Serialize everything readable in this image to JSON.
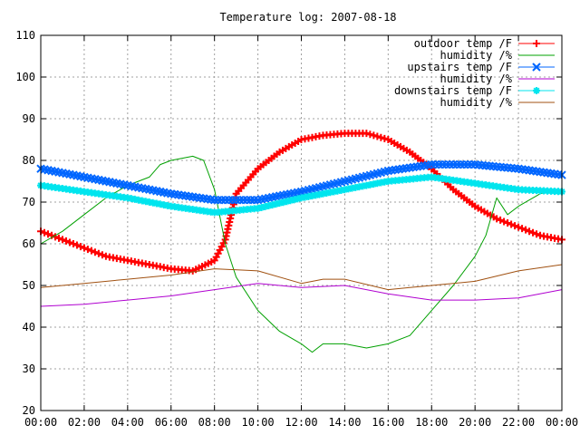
{
  "chart_data": {
    "type": "line",
    "title": "Temperature log: 2007-08-18",
    "xlabel": "",
    "ylabel": "",
    "xlim": [
      "00:00",
      "24:00"
    ],
    "ylim": [
      20,
      110
    ],
    "x_ticks": [
      "00:00",
      "02:00",
      "04:00",
      "06:00",
      "08:00",
      "10:00",
      "12:00",
      "14:00",
      "16:00",
      "18:00",
      "20:00",
      "22:00",
      "00:00"
    ],
    "y_ticks": [
      20,
      30,
      40,
      50,
      60,
      70,
      80,
      90,
      100,
      110
    ],
    "grid": true,
    "legend_position": "top-right",
    "series": [
      {
        "name": "outdoor temp /F",
        "color": "#ff0000",
        "marker": "plus",
        "x": [
          "00:00",
          "01:00",
          "02:00",
          "03:00",
          "04:00",
          "05:00",
          "06:00",
          "07:00",
          "08:00",
          "08:30",
          "09:00",
          "10:00",
          "11:00",
          "12:00",
          "13:00",
          "14:00",
          "15:00",
          "16:00",
          "17:00",
          "18:00",
          "19:00",
          "20:00",
          "21:00",
          "22:00",
          "23:00",
          "24:00"
        ],
        "y": [
          63,
          61,
          59,
          57,
          56,
          55,
          54,
          53.5,
          56,
          61,
          72,
          78,
          82,
          85,
          86,
          86.5,
          86.5,
          85,
          82,
          78,
          73,
          69,
          66,
          64,
          62,
          61
        ]
      },
      {
        "name": "humidity /%",
        "color": "#00a000",
        "marker": "none",
        "x": [
          "00:00",
          "01:00",
          "02:00",
          "03:00",
          "04:00",
          "05:00",
          "05:30",
          "06:00",
          "07:00",
          "07:30",
          "08:00",
          "08:30",
          "09:00",
          "10:00",
          "11:00",
          "12:00",
          "12:30",
          "13:00",
          "14:00",
          "15:00",
          "16:00",
          "17:00",
          "18:00",
          "19:00",
          "20:00",
          "20:30",
          "21:00",
          "21:30",
          "22:00",
          "23:00",
          "24:00"
        ],
        "y": [
          60,
          63,
          67,
          71,
          74,
          76,
          79,
          80,
          81,
          80,
          73,
          60,
          52,
          44,
          39,
          36,
          34,
          36,
          36,
          35,
          36,
          38,
          44,
          50,
          57,
          62,
          71,
          67,
          69,
          72,
          73
        ]
      },
      {
        "name": "upstairs temp /F",
        "color": "#0066ff",
        "marker": "x",
        "x": [
          "00:00",
          "02:00",
          "04:00",
          "06:00",
          "08:00",
          "10:00",
          "12:00",
          "14:00",
          "16:00",
          "18:00",
          "20:00",
          "22:00",
          "24:00"
        ],
        "y": [
          78,
          76,
          74,
          72,
          70.5,
          70.5,
          72.5,
          75,
          77.5,
          79,
          79,
          78,
          76.5
        ]
      },
      {
        "name": "humidity /%",
        "color": "#b000d0",
        "marker": "none",
        "x": [
          "00:00",
          "02:00",
          "04:00",
          "06:00",
          "08:00",
          "10:00",
          "12:00",
          "14:00",
          "16:00",
          "18:00",
          "20:00",
          "22:00",
          "24:00"
        ],
        "y": [
          45,
          45.5,
          46.5,
          47.5,
          49,
          50.5,
          49.5,
          50,
          48,
          46.5,
          46.5,
          47,
          49
        ]
      },
      {
        "name": "downstairs temp /F",
        "color": "#00e5ee",
        "marker": "star",
        "x": [
          "00:00",
          "02:00",
          "04:00",
          "06:00",
          "08:00",
          "10:00",
          "12:00",
          "14:00",
          "16:00",
          "18:00",
          "20:00",
          "22:00",
          "24:00"
        ],
        "y": [
          74,
          72.5,
          71,
          69,
          67.5,
          68.5,
          71,
          73,
          75,
          76,
          74.5,
          73,
          72.5
        ]
      },
      {
        "name": "humidity /%",
        "color": "#a05010",
        "marker": "none",
        "x": [
          "00:00",
          "02:00",
          "04:00",
          "06:00",
          "08:00",
          "10:00",
          "12:00",
          "13:00",
          "14:00",
          "16:00",
          "17:00",
          "18:00",
          "20:00",
          "22:00",
          "24:00"
        ],
        "y": [
          49.5,
          50.5,
          51.5,
          52.5,
          54,
          53.5,
          50.5,
          51.5,
          51.5,
          49,
          49.5,
          50,
          51,
          53.5,
          55
        ]
      }
    ]
  }
}
